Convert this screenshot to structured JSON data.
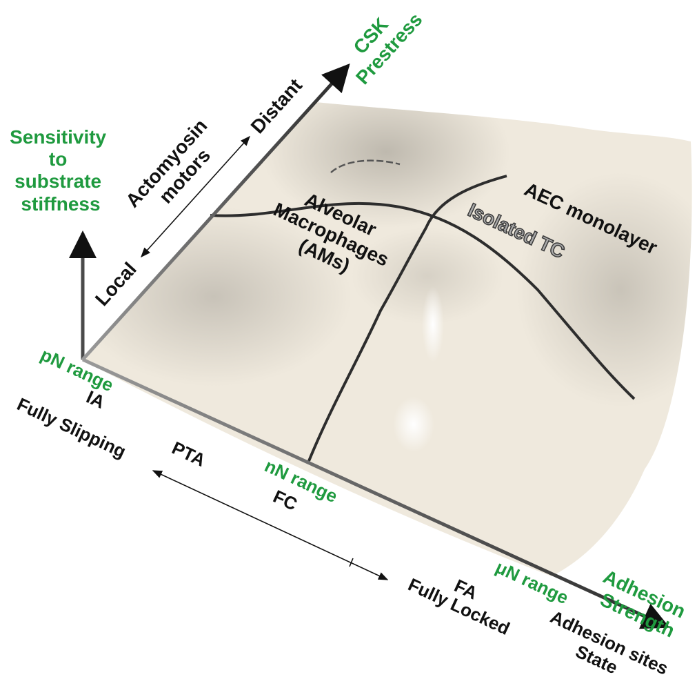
{
  "axes": {
    "vertical": {
      "title_lines": [
        "Sensitivity",
        "to",
        "substrate",
        "stiffness"
      ]
    },
    "diagonal": {
      "title_lines": [
        "CSK",
        "Prestress"
      ],
      "range_title_lines": [
        "Actomyosin",
        "motors"
      ],
      "low_label": "Local",
      "high_label": "Distant"
    },
    "horizontal": {
      "title_lines": [
        "Adhesion",
        "Strength"
      ],
      "pn_range": "pN range",
      "nn_range": "nN range",
      "un_range": "μN range",
      "ia_label": "IA",
      "fully_slipping": "Fully Slipping",
      "pta_label": "PTA",
      "fc_label": "FC",
      "fa_label": "FA",
      "fully_locked": "Fully Locked",
      "adhesion_state_lines": [
        "Adhesion sites",
        "State"
      ]
    }
  },
  "regions": {
    "am_lines": [
      "Alveolar",
      "Macrophages",
      "(AMs)"
    ],
    "aec": "AEC monolayer",
    "isolated_tc": "Isolated TC"
  },
  "colors": {
    "accent_green": "#1f9a3f",
    "surface": "#efe9dd",
    "text": "#111111"
  }
}
